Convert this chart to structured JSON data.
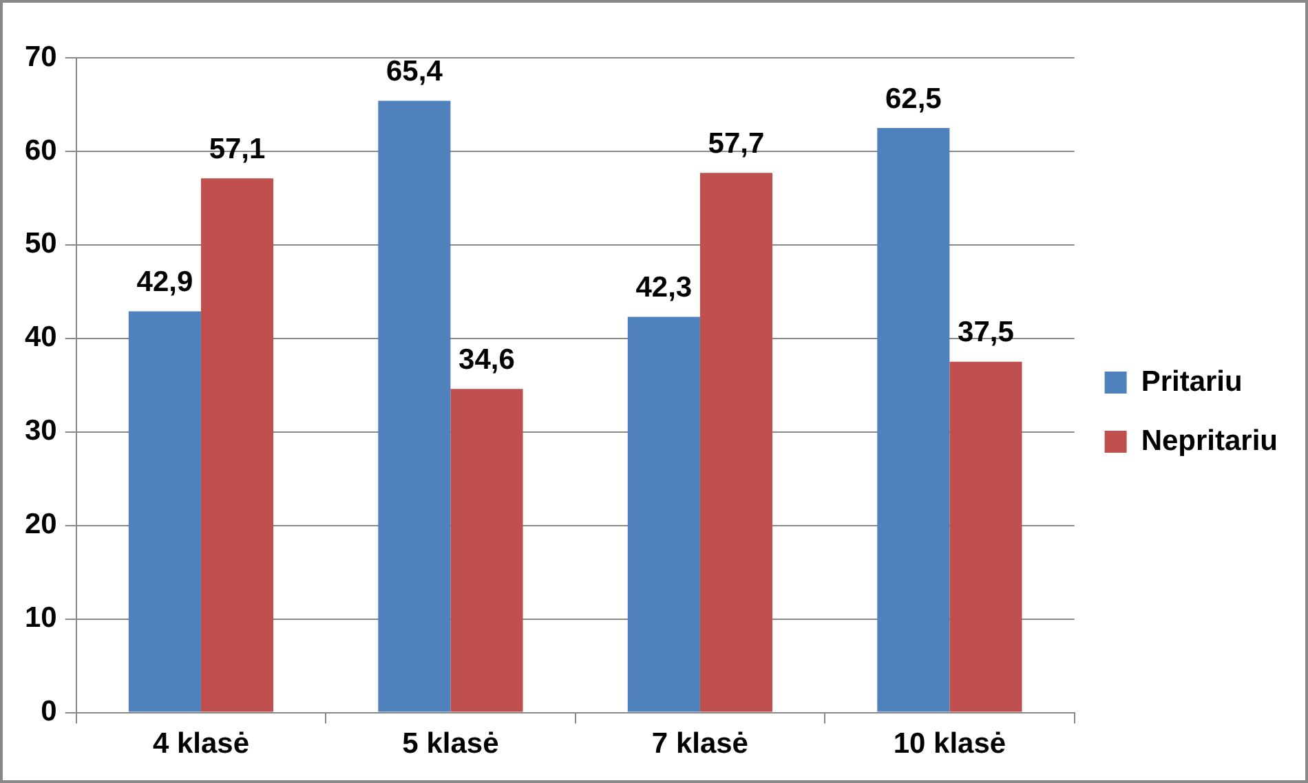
{
  "chart_data": {
    "type": "bar",
    "categories": [
      "4 klasė",
      "5 klasė",
      "7 klasė",
      "10 klasė"
    ],
    "series": [
      {
        "name": "Pritariu",
        "color": "#4f81bd",
        "values": [
          42.9,
          65.4,
          42.3,
          62.5
        ],
        "value_labels": [
          "42,9",
          "65,4",
          "42,3",
          "62,5"
        ]
      },
      {
        "name": "Nepritariu",
        "color": "#c0504d",
        "values": [
          57.1,
          34.6,
          57.7,
          37.5
        ],
        "value_labels": [
          "57,1",
          "34,6",
          "57,7",
          "37,5"
        ]
      }
    ],
    "ylim": [
      0,
      70
    ],
    "yticks": [
      0,
      10,
      20,
      30,
      40,
      50,
      60,
      70
    ],
    "grid": "y",
    "legend": "right"
  }
}
